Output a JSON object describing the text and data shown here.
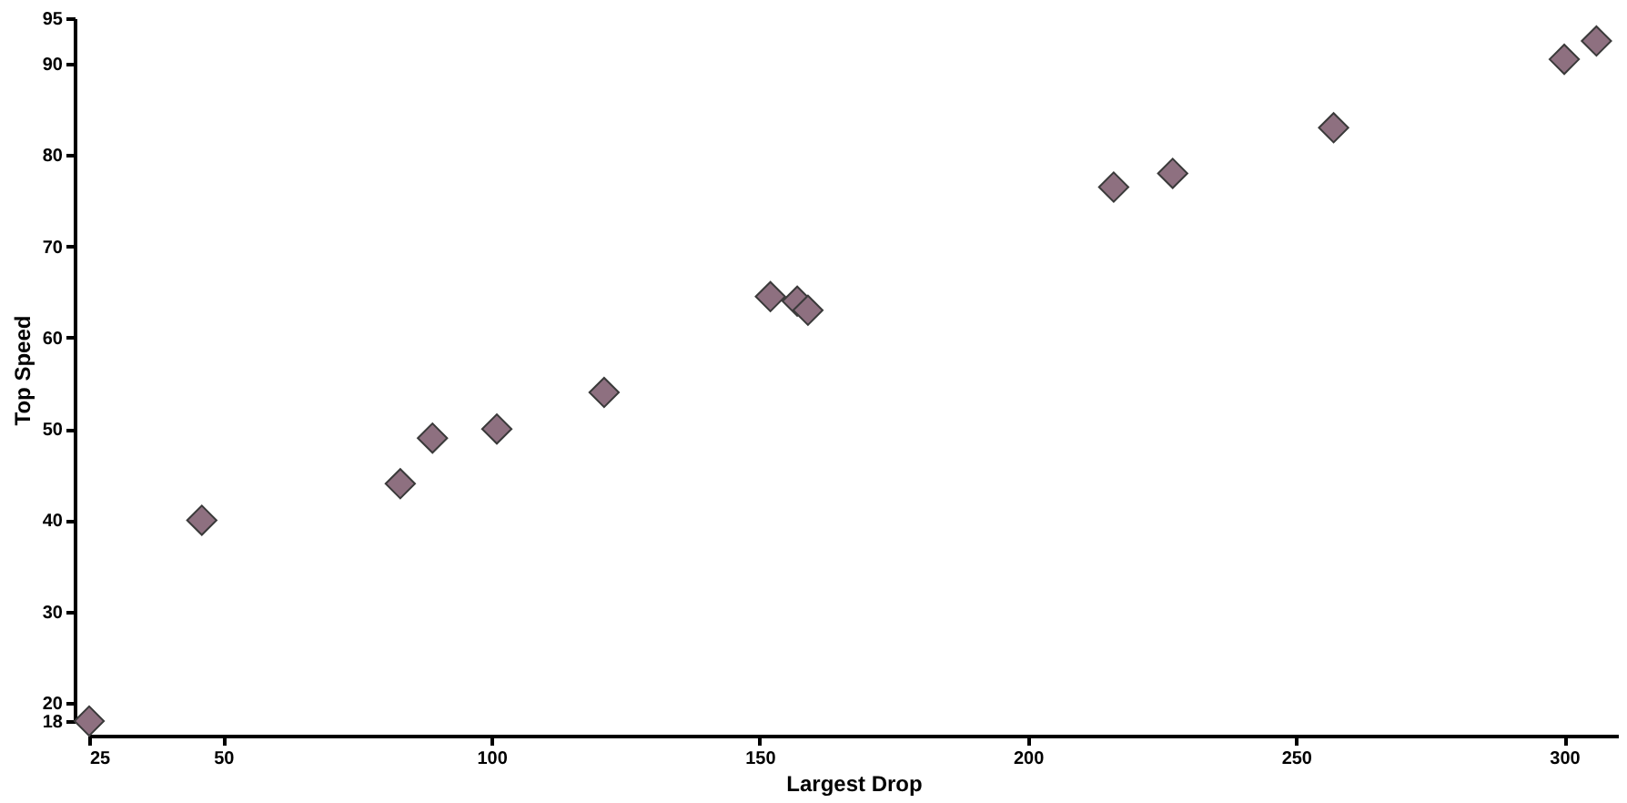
{
  "chart_data": {
    "type": "scatter",
    "xlabel": "Largest Drop",
    "ylabel": "Top Speed",
    "x": [
      25,
      46,
      83,
      89,
      101,
      121,
      152,
      157,
      159,
      216,
      227,
      257,
      300,
      306
    ],
    "values": [
      18,
      40,
      44,
      49,
      50,
      54,
      64.5,
      64,
      63,
      76.5,
      78,
      83,
      90.5,
      92.5
    ],
    "color": "#8e7080",
    "marker": "diamond",
    "xlim": [
      25,
      310
    ],
    "xticks": [
      25,
      50,
      100,
      150,
      200,
      250,
      300
    ],
    "ylim": [
      18,
      95
    ],
    "yticks": [
      18,
      20,
      30,
      40,
      50,
      60,
      70,
      80,
      90,
      95
    ],
    "grid": false
  }
}
